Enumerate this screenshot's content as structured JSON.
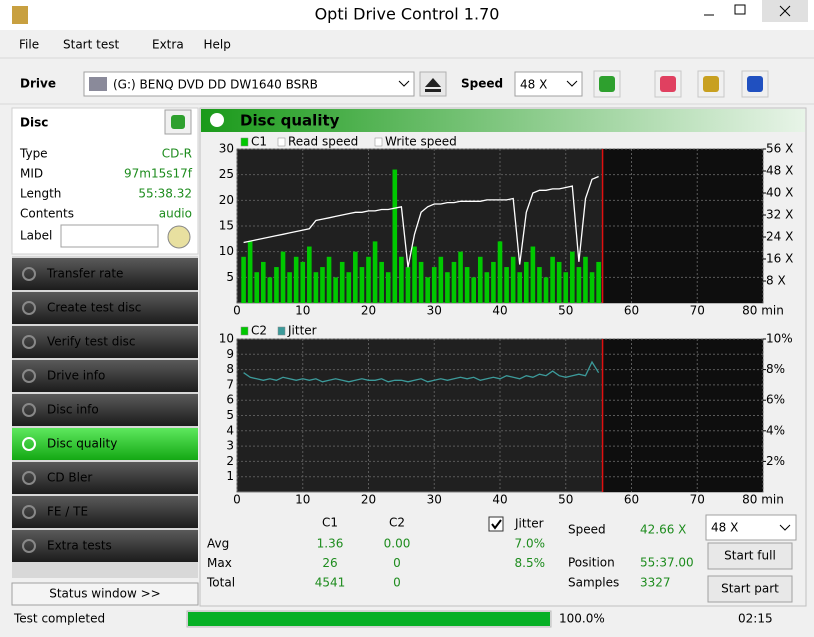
{
  "window": {
    "title": "Opti Drive Control 1.70"
  },
  "menu": [
    "File",
    "Start test",
    "Extra",
    "Help"
  ],
  "toolbar": {
    "drive_label": "Drive",
    "drive": "(G:)  BENQ DVD DD DW1640 BSRB",
    "speed_label": "Speed",
    "speed": "48 X"
  },
  "disc": {
    "header": "Disc",
    "rows": [
      [
        "Type",
        "CD-R"
      ],
      [
        "MID",
        "97m15s17f"
      ],
      [
        "Length",
        "55:38.32"
      ],
      [
        "Contents",
        "audio"
      ]
    ],
    "label": "Label"
  },
  "sidebar": {
    "buttons": [
      "Transfer rate",
      "Create test disc",
      "Verify test disc",
      "Drive info",
      "Disc info",
      "Disc quality",
      "CD Bler",
      "FE / TE",
      "Extra tests"
    ],
    "active": 5,
    "status_window": "Status window >>"
  },
  "panel": {
    "title": "Disc quality"
  },
  "stats": {
    "columns": [
      "C1",
      "C2"
    ],
    "rows": [
      [
        "Avg",
        "1.36",
        "0.00"
      ],
      [
        "Max",
        "26",
        "0"
      ],
      [
        "Total",
        "4541",
        "0"
      ]
    ],
    "jitter": {
      "label": "Jitter",
      "checked": true,
      "values": [
        "7.0%",
        "8.5%"
      ]
    },
    "info": [
      [
        "Speed",
        "42.66 X"
      ],
      [
        "Position",
        "55:37.00"
      ],
      [
        "Samples",
        "3327"
      ]
    ],
    "speed_select": "48 X",
    "buttons": [
      "Start full",
      "Start part"
    ]
  },
  "statusbar": {
    "text": "Test completed",
    "progress": 100,
    "progress_label": "100.0%",
    "time": "02:15"
  },
  "chart_data": [
    {
      "type": "bar",
      "grid": true,
      "cursor_x": 55.6,
      "x": [
        1,
        2,
        3,
        4,
        5,
        6,
        7,
        8,
        9,
        10,
        11,
        12,
        13,
        14,
        15,
        16,
        17,
        18,
        19,
        20,
        21,
        22,
        23,
        24,
        25,
        26,
        27,
        28,
        29,
        30,
        31,
        32,
        33,
        34,
        35,
        36,
        37,
        38,
        39,
        40,
        41,
        42,
        43,
        44,
        45,
        46,
        47,
        48,
        49,
        50,
        51,
        52,
        53,
        54,
        55
      ],
      "xlim": [
        0,
        80
      ],
      "xticks": [
        0,
        10,
        20,
        30,
        40,
        50,
        60,
        70,
        {
          "value": 80,
          "label": "80 min"
        }
      ],
      "ylim": [
        0,
        30
      ],
      "yticks": [
        5,
        10,
        15,
        20,
        25,
        30
      ],
      "y2lim": [
        0,
        56
      ],
      "y2ticks": [
        {
          "value": 8,
          "label": "8 X"
        },
        {
          "value": 16,
          "label": "16 X"
        },
        {
          "value": 24,
          "label": "24 X"
        },
        {
          "value": 32,
          "label": "32 X"
        },
        {
          "value": 40,
          "label": "40 X"
        },
        {
          "value": 48,
          "label": "48 X"
        },
        {
          "value": 56,
          "label": "56 X"
        }
      ],
      "series": [
        {
          "name": "C1",
          "color": "#00c800",
          "values": [
            9,
            12,
            6,
            8,
            5,
            7,
            10,
            6,
            9,
            8,
            11,
            6,
            7,
            9,
            5,
            8,
            6,
            10,
            7,
            9,
            12,
            8,
            6,
            26,
            9,
            7,
            11,
            8,
            5,
            7,
            9,
            6,
            8,
            10,
            7,
            5,
            9,
            6,
            8,
            12,
            7,
            9,
            6,
            8,
            11,
            7,
            5,
            9,
            8,
            6,
            10,
            7,
            9,
            6,
            8
          ]
        },
        {
          "name": "Read speed",
          "color": "#ffffff",
          "axis": "y2",
          "values": [
            22,
            22.5,
            23,
            23.5,
            24,
            24.5,
            25,
            25.5,
            26,
            26.5,
            27,
            30,
            30.5,
            31,
            31.5,
            32,
            32.5,
            33,
            33,
            33.5,
            33.5,
            34,
            34,
            34.5,
            35,
            13,
            25,
            33,
            35,
            36,
            36,
            36.5,
            36.5,
            37,
            37,
            37,
            37,
            37.5,
            37.5,
            37.5,
            37.5,
            38,
            14,
            33,
            40,
            41,
            41,
            41.5,
            41.5,
            42,
            42.5,
            15,
            38,
            45,
            46
          ]
        },
        {
          "name": "Write speed",
          "color": "#ffffff",
          "axis": "y2",
          "values": [
            null,
            null,
            null,
            null,
            null,
            null,
            null,
            null,
            null,
            null,
            null,
            null,
            null,
            null,
            null,
            null,
            null,
            null,
            null,
            null,
            null,
            null,
            null,
            null,
            null,
            null,
            null,
            null,
            null,
            null,
            null,
            null,
            null,
            null,
            null,
            null,
            null,
            null,
            null,
            null,
            null,
            null,
            null,
            null,
            null,
            null,
            null,
            null,
            null,
            null,
            null,
            null,
            null,
            null,
            null
          ]
        }
      ]
    },
    {
      "type": "bar",
      "grid": true,
      "cursor_x": 55.6,
      "x": [
        1,
        2,
        3,
        4,
        5,
        6,
        7,
        8,
        9,
        10,
        11,
        12,
        13,
        14,
        15,
        16,
        17,
        18,
        19,
        20,
        21,
        22,
        23,
        24,
        25,
        26,
        27,
        28,
        29,
        30,
        31,
        32,
        33,
        34,
        35,
        36,
        37,
        38,
        39,
        40,
        41,
        42,
        43,
        44,
        45,
        46,
        47,
        48,
        49,
        50,
        51,
        52,
        53,
        54,
        55
      ],
      "xlim": [
        0,
        80
      ],
      "xticks": [
        0,
        10,
        20,
        30,
        40,
        50,
        60,
        70,
        {
          "value": 80,
          "label": "80 min"
        }
      ],
      "ylim": [
        0,
        10
      ],
      "yticks": [
        1,
        2,
        3,
        4,
        5,
        6,
        7,
        8,
        9,
        10
      ],
      "y2lim": [
        0,
        10
      ],
      "y2ticks": [
        {
          "value": 2,
          "label": "2%"
        },
        {
          "value": 4,
          "label": "4%"
        },
        {
          "value": 6,
          "label": "6%"
        },
        {
          "value": 8,
          "label": "8%"
        },
        {
          "value": 10,
          "label": "10%"
        }
      ],
      "series": [
        {
          "name": "C2",
          "color": "#00c800",
          "values": [
            0,
            0,
            0,
            0,
            0,
            0,
            0,
            0,
            0,
            0,
            0,
            0,
            0,
            0,
            0,
            0,
            0,
            0,
            0,
            0,
            0,
            0,
            0,
            0,
            0,
            0,
            0,
            0,
            0,
            0,
            0,
            0,
            0,
            0,
            0,
            0,
            0,
            0,
            0,
            0,
            0,
            0,
            0,
            0,
            0,
            0,
            0,
            0,
            0,
            0,
            0,
            0,
            0,
            0,
            0
          ]
        },
        {
          "name": "Jitter",
          "color": "#3c9a9a",
          "axis": "y2",
          "values": [
            7.8,
            7.5,
            7.4,
            7.3,
            7.4,
            7.3,
            7.5,
            7.4,
            7.3,
            7.4,
            7.3,
            7.4,
            7.2,
            7.3,
            7.4,
            7.3,
            7.2,
            7.3,
            7.4,
            7.3,
            7.3,
            7.4,
            7.2,
            7.3,
            7.3,
            7.2,
            7.3,
            7.4,
            7.2,
            7.3,
            7.4,
            7.3,
            7.4,
            7.5,
            7.4,
            7.5,
            7.3,
            7.4,
            7.5,
            7.4,
            7.6,
            7.5,
            7.4,
            7.6,
            7.5,
            7.7,
            7.6,
            7.9,
            7.6,
            7.5,
            7.6,
            7.7,
            7.6,
            8.5,
            7.8
          ]
        }
      ]
    }
  ]
}
